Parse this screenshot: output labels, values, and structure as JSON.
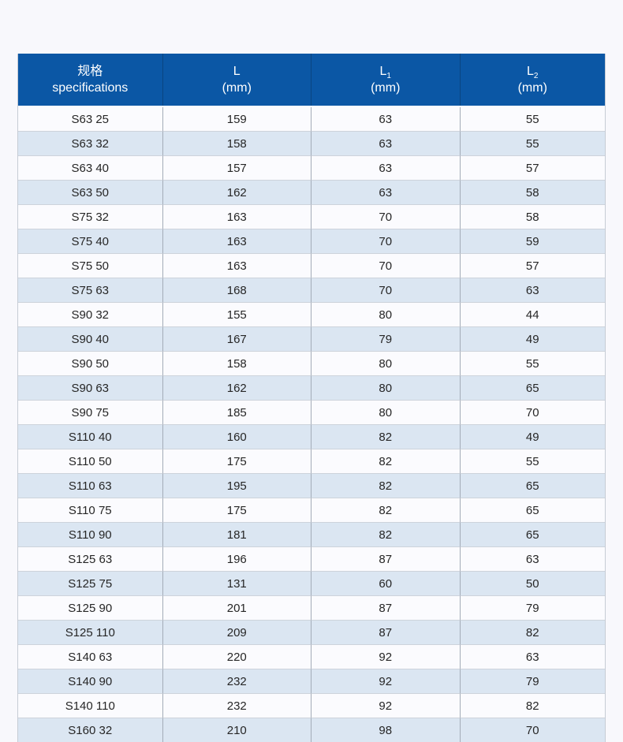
{
  "colors": {
    "page_background": "#f8f8fc",
    "header_background": "#0b57a5",
    "header_text": "#ffffff",
    "row_even_background": "#fbfbfe",
    "row_odd_background": "#dbe6f2",
    "cell_text": "#262626",
    "column_divider": "#a3abb7",
    "row_divider": "#cdd3db",
    "header_column_divider": "#0a4580"
  },
  "chart_data": {
    "type": "table",
    "title": "",
    "columns": [
      {
        "line1": "规格",
        "sub": "",
        "line2": "specifications"
      },
      {
        "line1": "L",
        "sub": "",
        "line2": "(mm)"
      },
      {
        "line1": "L",
        "sub": "1",
        "line2": "(mm)"
      },
      {
        "line1": "L",
        "sub": "2",
        "line2": "(mm)"
      }
    ],
    "rows": [
      [
        "S63 25",
        "159",
        "63",
        "55"
      ],
      [
        "S63 32",
        "158",
        "63",
        "55"
      ],
      [
        "S63 40",
        "157",
        "63",
        "57"
      ],
      [
        "S63 50",
        "162",
        "63",
        "58"
      ],
      [
        "S75 32",
        "163",
        "70",
        "58"
      ],
      [
        "S75 40",
        "163",
        "70",
        "59"
      ],
      [
        "S75 50",
        "163",
        "70",
        "57"
      ],
      [
        "S75 63",
        "168",
        "70",
        "63"
      ],
      [
        "S90 32",
        "155",
        "80",
        "44"
      ],
      [
        "S90 40",
        "167",
        "79",
        "49"
      ],
      [
        "S90 50",
        "158",
        "80",
        "55"
      ],
      [
        "S90 63",
        "162",
        "80",
        "65"
      ],
      [
        "S90 75",
        "185",
        "80",
        "70"
      ],
      [
        "S110 40",
        "160",
        "82",
        "49"
      ],
      [
        "S110 50",
        "175",
        "82",
        "55"
      ],
      [
        "S110 63",
        "195",
        "82",
        "65"
      ],
      [
        "S110 75",
        "175",
        "82",
        "65"
      ],
      [
        "S110 90",
        "181",
        "82",
        "65"
      ],
      [
        "S125 63",
        "196",
        "87",
        "63"
      ],
      [
        "S125 75",
        "131",
        "60",
        "50"
      ],
      [
        "S125 90",
        "201",
        "87",
        "79"
      ],
      [
        "S125 110",
        "209",
        "87",
        "82"
      ],
      [
        "S140 63",
        "220",
        "92",
        "63"
      ],
      [
        "S140 90",
        "232",
        "92",
        "79"
      ],
      [
        "S140 110",
        "232",
        "92",
        "82"
      ],
      [
        "S160 32",
        "210",
        "98",
        "70"
      ]
    ]
  }
}
